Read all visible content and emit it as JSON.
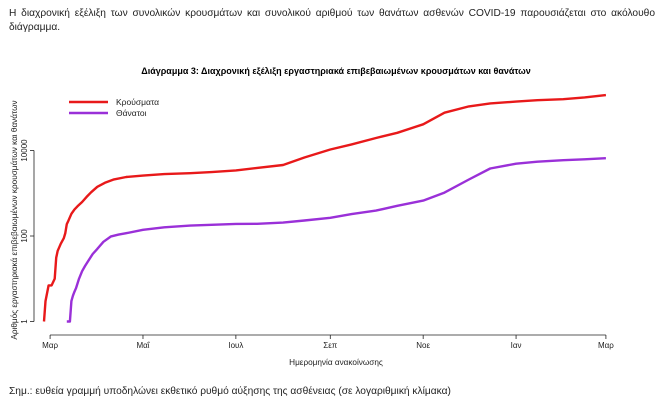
{
  "intro_text": "Η διαχρονική εξέλιξη των συνολικών κρουσμάτων και συνολικού αριθμού των θανάτων ασθενών COVID-19 παρουσιάζεται στο ακόλουθο διάγραμμα.",
  "note_text": "Σημ.: ευθεία γραμμή υποδηλώνει εκθετικό ρυθμό αύξησης της ασθένειας (σε λογαριθμική κλίμακα)",
  "chart_data": {
    "type": "line",
    "title": "Διάγραμμα 3: Διαχρονική εξέλιξη εργαστηριακά επιβεβαιωμένων κρουσμάτων και θανάτων",
    "xlabel": "Ημερομηνία ανακοίνωσης",
    "ylabel": "Αριθμός εργαστηριακά επιβεβαιωμένων κρουσμάτων και θανάτων",
    "x_tick_labels": [
      "Μαρ",
      "Μαΐ",
      "Ιουλ",
      "Σεπ",
      "Νοε",
      "Ιαν",
      "Μαρ"
    ],
    "y_scale": "log",
    "y_ticks": [
      1,
      100,
      10000
    ],
    "y_tick_labels": [
      "1",
      "100",
      "10000"
    ],
    "xlim": [
      "2020-02-26",
      "2021-03-05"
    ],
    "ylim": [
      0.6,
      400000
    ],
    "legend_position": "top-left",
    "grid": false,
    "series": [
      {
        "name": "Κρούσματα",
        "color": "#e8191a",
        "points": [
          [
            "2020-02-26",
            1
          ],
          [
            "2020-02-27",
            3
          ],
          [
            "2020-02-29",
            7
          ],
          [
            "2020-03-01",
            7
          ],
          [
            "2020-03-02",
            7
          ],
          [
            "2020-03-04",
            10
          ],
          [
            "2020-03-05",
            31
          ],
          [
            "2020-03-06",
            45
          ],
          [
            "2020-03-08",
            66
          ],
          [
            "2020-03-10",
            89
          ],
          [
            "2020-03-11",
            117
          ],
          [
            "2020-03-12",
            190
          ],
          [
            "2020-03-13",
            228
          ],
          [
            "2020-03-15",
            331
          ],
          [
            "2020-03-17",
            418
          ],
          [
            "2020-03-19",
            495
          ],
          [
            "2020-03-22",
            624
          ],
          [
            "2020-03-25",
            821
          ],
          [
            "2020-03-28",
            1061
          ],
          [
            "2020-04-01",
            1415
          ],
          [
            "2020-04-06",
            1755
          ],
          [
            "2020-04-12",
            2114
          ],
          [
            "2020-04-20",
            2401
          ],
          [
            "2020-05-01",
            2591
          ],
          [
            "2020-05-15",
            2810
          ],
          [
            "2020-06-01",
            2952
          ],
          [
            "2020-06-15",
            3121
          ],
          [
            "2020-07-01",
            3432
          ],
          [
            "2020-07-15",
            3910
          ],
          [
            "2020-08-01",
            4587
          ],
          [
            "2020-08-15",
            6858
          ],
          [
            "2020-09-01",
            10524
          ],
          [
            "2020-09-15",
            13913
          ],
          [
            "2020-10-01",
            19613
          ],
          [
            "2020-10-15",
            25902
          ],
          [
            "2020-11-01",
            40929
          ],
          [
            "2020-11-15",
            76403
          ],
          [
            "2020-12-01",
            107470
          ],
          [
            "2020-12-15",
            126372
          ],
          [
            "2021-01-01",
            139447
          ],
          [
            "2021-01-15",
            149973
          ],
          [
            "2021-02-01",
            158716
          ],
          [
            "2021-02-15",
            174086
          ],
          [
            "2021-03-01",
            197163
          ]
        ]
      },
      {
        "name": "Θάνατοι",
        "color": "#9a30d8",
        "points": [
          [
            "2020-03-12",
            1
          ],
          [
            "2020-03-14",
            1
          ],
          [
            "2020-03-15",
            3
          ],
          [
            "2020-03-16",
            4
          ],
          [
            "2020-03-17",
            5
          ],
          [
            "2020-03-18",
            6
          ],
          [
            "2020-03-20",
            10
          ],
          [
            "2020-03-22",
            15
          ],
          [
            "2020-03-24",
            20
          ],
          [
            "2020-03-26",
            26
          ],
          [
            "2020-03-29",
            38
          ],
          [
            "2020-04-01",
            50
          ],
          [
            "2020-04-05",
            73
          ],
          [
            "2020-04-10",
            98
          ],
          [
            "2020-04-15",
            108
          ],
          [
            "2020-04-20",
            116
          ],
          [
            "2020-05-01",
            140
          ],
          [
            "2020-05-15",
            160
          ],
          [
            "2020-06-01",
            175
          ],
          [
            "2020-06-15",
            183
          ],
          [
            "2020-07-01",
            192
          ],
          [
            "2020-07-15",
            193
          ],
          [
            "2020-08-01",
            206
          ],
          [
            "2020-08-15",
            230
          ],
          [
            "2020-09-01",
            266
          ],
          [
            "2020-09-15",
            326
          ],
          [
            "2020-10-01",
            393
          ],
          [
            "2020-10-15",
            509
          ],
          [
            "2020-11-01",
            673
          ],
          [
            "2020-11-15",
            1035
          ],
          [
            "2020-12-01",
            2102
          ],
          [
            "2020-12-15",
            3797
          ],
          [
            "2021-01-01",
            4921
          ],
          [
            "2021-01-15",
            5474
          ],
          [
            "2021-02-01",
            5929
          ],
          [
            "2021-02-15",
            6211
          ],
          [
            "2021-03-01",
            6598
          ]
        ]
      }
    ]
  }
}
